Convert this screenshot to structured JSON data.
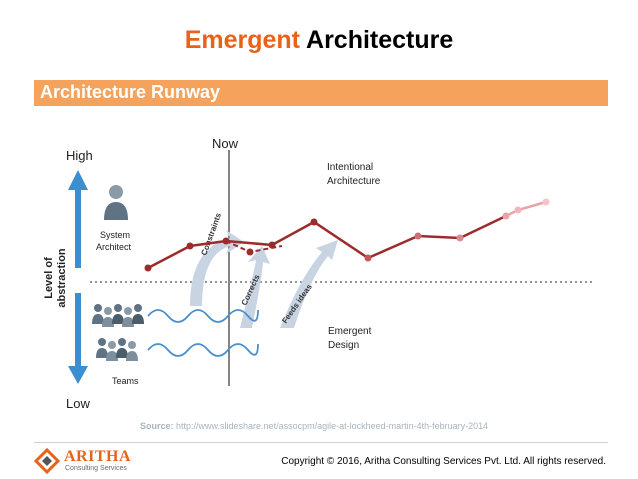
{
  "title": {
    "accent": "Emergent",
    "rest": " Architecture"
  },
  "banner": {
    "label": "Architecture Runway"
  },
  "diagram": {
    "now_label": "Now",
    "high_label": "High",
    "low_label": "Low",
    "axis_label_line1": "Level of",
    "axis_label_line2": "abstraction",
    "system_architect_line1": "System",
    "system_architect_line2": "Architect",
    "teams_label": "Teams",
    "intentional_line1": "Intentional",
    "intentional_line2": "Architecture",
    "emergent_line1": "Emergent",
    "emergent_line2": "Design",
    "constraints_label": "Constraints",
    "corrects_label": "Corrects",
    "feeds_label": "Feeds ideas",
    "line_color": "#9b2c2c",
    "faded_color": "#e7a3a8",
    "wave_color": "#4a8fce",
    "arrow_color": "#3b8ed0"
  },
  "source": {
    "prefix": "Source:",
    "url": " http://www.slideshare.net/assocpm/agile-at-lockheed-martin-4th-february-2014"
  },
  "footer": {
    "brand": "ARITHA",
    "tagline": "Consulting Services",
    "copyright": "Copyright © 2016, Aritha Consulting Services Pvt. Ltd. All rights reserved."
  }
}
